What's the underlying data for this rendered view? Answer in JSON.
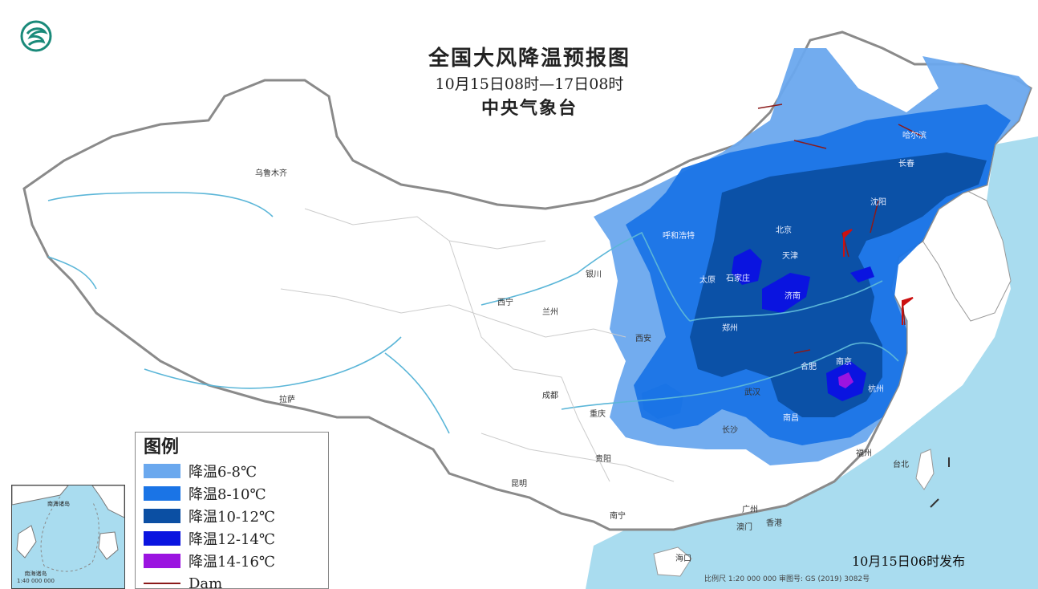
{
  "title": {
    "main": "全国大风降温预报图",
    "period": "10月15日08时—17日08时",
    "issuer": "中央气象台"
  },
  "legend": {
    "heading": "图例",
    "items": [
      {
        "label": "降温6-8℃",
        "color": "#6aa8ee"
      },
      {
        "label": "降温8-10℃",
        "color": "#1a74e6"
      },
      {
        "label": "降温10-12℃",
        "color": "#0b4fa3"
      },
      {
        "label": "降温12-14℃",
        "color": "#0a14e0"
      },
      {
        "label": "降温14-16℃",
        "color": "#9b14e0"
      }
    ],
    "dam_label": "Dam"
  },
  "cities": [
    {
      "name": "乌鲁木齐"
    },
    {
      "name": "西宁"
    },
    {
      "name": "兰州"
    },
    {
      "name": "银川"
    },
    {
      "name": "呼和浩特"
    },
    {
      "name": "太原"
    },
    {
      "name": "石家庄"
    },
    {
      "name": "北京"
    },
    {
      "name": "天津"
    },
    {
      "name": "济南"
    },
    {
      "name": "郑州"
    },
    {
      "name": "西安"
    },
    {
      "name": "成都"
    },
    {
      "name": "重庆"
    },
    {
      "name": "拉萨"
    },
    {
      "name": "贵阳"
    },
    {
      "name": "昆明"
    },
    {
      "name": "南宁"
    },
    {
      "name": "长沙"
    },
    {
      "name": "武汉"
    },
    {
      "name": "合肥"
    },
    {
      "name": "南京"
    },
    {
      "name": "杭州"
    },
    {
      "name": "南昌"
    },
    {
      "name": "福州"
    },
    {
      "name": "台北"
    },
    {
      "name": "广州"
    },
    {
      "name": "香港"
    },
    {
      "name": "澳门"
    },
    {
      "name": "海口"
    },
    {
      "name": "沈阳"
    },
    {
      "name": "长春"
    },
    {
      "name": "哈尔滨"
    }
  ],
  "inset": {
    "sea_label": "南海诸岛",
    "caption_1": "南海诸岛",
    "caption_2": "1:40 000 000"
  },
  "publish_note": "10月15日06时发布",
  "footer": "比例尺 1:20 000 000    审图号: GS (2019) 3082号",
  "colors": {
    "sea": "#a9dcef",
    "land": "#ffffff",
    "border": "#8a8a8a",
    "river": "#5bb6d8"
  }
}
